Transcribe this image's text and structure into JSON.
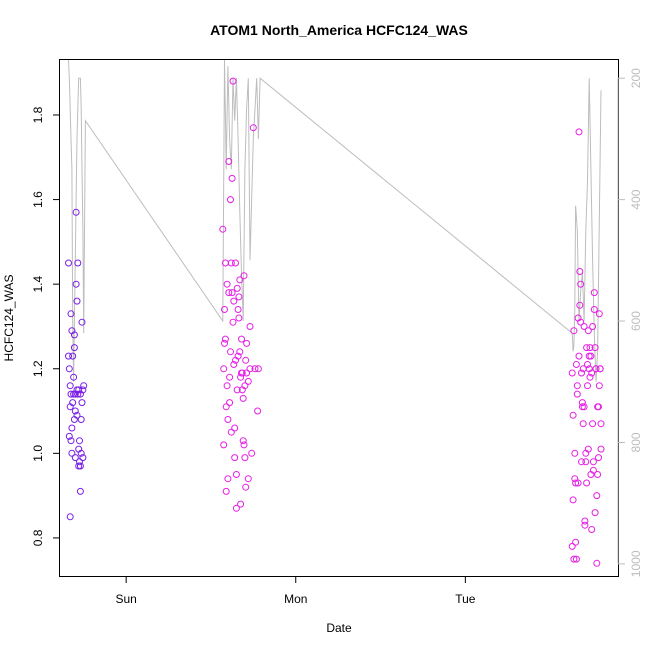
{
  "chart_data": {
    "type": "scatter",
    "title": "ATOM1 North_America HCFC124_WAS",
    "xlabel": "Date",
    "ylabel": "HCFC124_WAS",
    "x_ticks": [
      "Sun",
      "Mon",
      "Tue"
    ],
    "x_tick_values": [
      0,
      1,
      2
    ],
    "xlim": [
      -0.39,
      2.9
    ],
    "ylim": [
      0.71,
      1.93
    ],
    "y_ticks": [
      0.8,
      1.0,
      1.2,
      1.4,
      1.6,
      1.8
    ],
    "y_right_ticks": [
      200,
      400,
      600,
      800,
      1000
    ],
    "y_right_lim": [
      1020,
      170
    ],
    "y_right_reversed": true,
    "grid": false,
    "colors": {
      "points_early": "#7a1fe6",
      "points_late": "#e61fe6",
      "line": "#bdbdbd",
      "axis": "#000000",
      "right_axis": "#bdbdbd"
    },
    "series": [
      {
        "color": "#7a1fe6",
        "x": [
          -0.34,
          -0.34,
          -0.335,
          -0.335,
          -0.33,
          -0.33,
          -0.33,
          -0.325,
          -0.325,
          -0.325,
          -0.32,
          -0.32,
          -0.32,
          -0.315,
          -0.315,
          -0.31,
          -0.31,
          -0.305,
          -0.305,
          -0.305,
          -0.3,
          -0.3,
          -0.3,
          -0.295,
          -0.295,
          -0.29,
          -0.29,
          -0.29,
          -0.285,
          -0.285,
          -0.28,
          -0.28,
          -0.28,
          -0.275,
          -0.275,
          -0.27,
          -0.27,
          -0.27,
          -0.265,
          -0.265,
          -0.26,
          -0.26,
          -0.255,
          -0.255,
          -0.25
        ],
        "y": [
          1.45,
          1.23,
          1.04,
          1.2,
          0.85,
          1.11,
          1.16,
          1.03,
          1.14,
          1.33,
          1.29,
          1.06,
          1.0,
          1.12,
          1.23,
          1.18,
          1.14,
          1.25,
          1.28,
          1.08,
          1.14,
          0.99,
          1.1,
          1.57,
          1.4,
          1.36,
          1.15,
          1.09,
          1.45,
          1.14,
          1.01,
          1.15,
          0.97,
          1.03,
          0.98,
          0.97,
          0.91,
          1.14,
          1.0,
          1.08,
          1.12,
          1.31,
          0.99,
          1.15,
          1.16
        ]
      },
      {
        "color": "#e61fe6",
        "x": [
          0.57,
          0.575,
          0.575,
          0.58,
          0.58,
          0.585,
          0.585,
          0.59,
          0.59,
          0.595,
          0.595,
          0.6,
          0.6,
          0.605,
          0.605,
          0.61,
          0.61,
          0.615,
          0.615,
          0.62,
          0.62,
          0.625,
          0.625,
          0.63,
          0.63,
          0.635,
          0.635,
          0.64,
          0.64,
          0.645,
          0.645,
          0.65,
          0.65,
          0.655,
          0.655,
          0.66,
          0.66,
          0.665,
          0.665,
          0.67,
          0.67,
          0.675,
          0.675,
          0.68,
          0.68,
          0.685,
          0.685,
          0.69,
          0.69,
          0.695,
          0.695,
          0.7,
          0.7,
          0.705,
          0.705,
          0.71,
          0.71,
          0.72,
          0.72,
          0.73,
          0.73,
          0.74,
          0.75,
          0.76,
          0.775,
          0.78
        ],
        "y": [
          1.53,
          1.2,
          1.02,
          1.26,
          1.34,
          1.45,
          1.27,
          1.11,
          0.91,
          1.16,
          1.4,
          1.08,
          0.94,
          1.69,
          1.38,
          1.18,
          1.12,
          1.6,
          1.24,
          1.05,
          1.45,
          1.65,
          1.38,
          1.88,
          1.31,
          1.21,
          1.36,
          1.06,
          0.99,
          1.45,
          1.22,
          0.87,
          0.95,
          1.39,
          1.15,
          1.34,
          1.23,
          1.37,
          1.32,
          1.41,
          1.24,
          1.18,
          0.88,
          1.19,
          1.27,
          1.15,
          1.19,
          1.03,
          1.13,
          1.42,
          1.02,
          1.16,
          0.99,
          0.92,
          1.22,
          1.26,
          1.19,
          1.17,
          0.94,
          1.3,
          1.2,
          1.0,
          1.77,
          1.2,
          1.1,
          1.2
        ]
      },
      {
        "color": "#e61fe6",
        "x": [
          2.63,
          2.63,
          2.635,
          2.635,
          2.64,
          2.64,
          2.645,
          2.645,
          2.65,
          2.65,
          2.655,
          2.655,
          2.66,
          2.66,
          2.665,
          2.665,
          2.67,
          2.67,
          2.675,
          2.675,
          2.68,
          2.68,
          2.685,
          2.685,
          2.69,
          2.69,
          2.695,
          2.695,
          2.7,
          2.7,
          2.705,
          2.705,
          2.71,
          2.71,
          2.715,
          2.715,
          2.72,
          2.72,
          2.725,
          2.725,
          2.73,
          2.73,
          2.735,
          2.735,
          2.74,
          2.74,
          2.745,
          2.745,
          2.75,
          2.75,
          2.755,
          2.755,
          2.76,
          2.76,
          2.765,
          2.765,
          2.77,
          2.77,
          2.775,
          2.775,
          2.78,
          2.78,
          2.785,
          2.785,
          2.79,
          2.79,
          2.795,
          2.795,
          2.8,
          2.8
        ],
        "y": [
          1.19,
          0.78,
          1.09,
          0.89,
          1.29,
          0.75,
          0.94,
          1.0,
          0.93,
          0.79,
          0.75,
          1.21,
          1.14,
          1.16,
          0.93,
          1.32,
          1.23,
          1.76,
          1.43,
          1.35,
          1.31,
          1.4,
          1.19,
          0.98,
          1.11,
          1.12,
          1.07,
          1.2,
          1.3,
          1.11,
          0.84,
          0.83,
          0.98,
          1.0,
          0.93,
          1.25,
          1.16,
          1.21,
          1.29,
          1.01,
          1.2,
          1.23,
          1.18,
          1.25,
          1.23,
          0.95,
          1.19,
          0.82,
          1.07,
          1.3,
          0.98,
          0.96,
          1.38,
          1.34,
          1.25,
          0.86,
          1.2,
          1.2,
          0.74,
          0.9,
          0.95,
          1.11,
          0.99,
          1.11,
          1.33,
          1.16,
          1.2,
          1.2,
          1.01,
          1.07
        ]
      }
    ],
    "line_series": {
      "color": "#bdbdbd",
      "x": [
        -0.34,
        -0.335,
        -0.33,
        -0.325,
        -0.32,
        -0.315,
        -0.31,
        -0.305,
        -0.3,
        -0.295,
        -0.29,
        -0.285,
        -0.28,
        -0.275,
        -0.27,
        -0.265,
        -0.26,
        -0.255,
        -0.25,
        -0.24,
        0.57,
        0.58,
        0.585,
        0.59,
        0.6,
        0.61,
        0.62,
        0.63,
        0.64,
        0.65,
        0.66,
        0.67,
        0.68,
        0.69,
        0.7,
        0.71,
        0.72,
        0.73,
        0.75,
        0.76,
        0.77,
        0.78,
        0.79,
        2.63,
        2.635,
        2.64,
        2.645,
        2.65,
        2.66,
        2.67,
        2.68,
        2.69,
        2.7,
        2.71,
        2.72,
        2.73,
        2.74,
        2.75,
        2.76,
        2.77,
        2.78,
        2.8
      ],
      "y_right": [
        170,
        200,
        250,
        300,
        350,
        600,
        700,
        600,
        500,
        400,
        300,
        250,
        200,
        200,
        200,
        250,
        350,
        450,
        620,
        270,
        600,
        170,
        260,
        350,
        180,
        300,
        350,
        200,
        270,
        200,
        300,
        420,
        520,
        600,
        350,
        250,
        200,
        500,
        300,
        250,
        200,
        300,
        200,
        620,
        650,
        640,
        580,
        410,
        450,
        600,
        550,
        520,
        600,
        450,
        370,
        200,
        350,
        500,
        620,
        700,
        650,
        220
      ]
    }
  }
}
